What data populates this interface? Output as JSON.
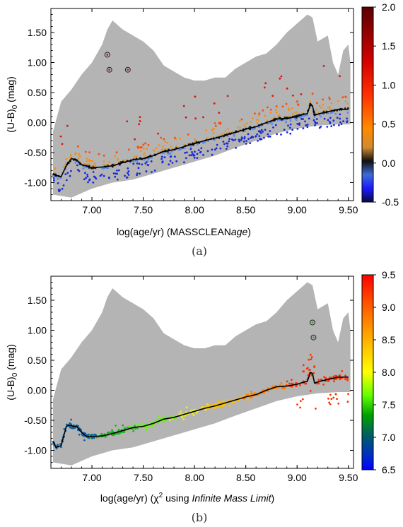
{
  "panels": [
    {
      "panel_label": "(a)",
      "xlabel_plain": "log(age/yr) (MASSCLEAN",
      "xlabel_italic": "age",
      "xlabel_tail": ")",
      "ylabel_main": "(U-B)",
      "ylabel_sub": "0",
      "ylabel_tail": " (mag)",
      "colorbar": {
        "ticks": [
          "2.0",
          "1.5",
          "1.0",
          "0.5",
          "0.0",
          "-0.5"
        ],
        "values": [
          2.0,
          1.5,
          1.0,
          0.5,
          0.0,
          -0.5
        ],
        "range": [
          -0.5,
          2.0
        ]
      }
    },
    {
      "panel_label": "(b)",
      "xlabel_plain": "log(age/yr) (χ",
      "xlabel_sup": "2",
      "xlabel_mid": " using ",
      "xlabel_italic": "Infinite Mass Limit",
      "xlabel_tail": ")",
      "ylabel_main": "(U-B)",
      "ylabel_sub": "0",
      "ylabel_tail": " (mag)",
      "colorbar": {
        "ticks": [
          "9.5",
          "9.0",
          "8.5",
          "8.0",
          "7.5",
          "7.0",
          "6.5"
        ],
        "values": [
          9.5,
          9.0,
          8.5,
          8.0,
          7.5,
          7.0,
          6.5
        ],
        "range": [
          6.5,
          9.5
        ]
      }
    }
  ],
  "chart_data": [
    {
      "type": "scatter",
      "xlim": [
        6.6,
        9.55
      ],
      "ylim": [
        -1.3,
        1.9
      ],
      "x_ticks": [
        "7.00",
        "7.50",
        "8.00",
        "8.50",
        "9.00",
        "9.50"
      ],
      "y_ticks": [
        "1.50",
        "1.00",
        "0.50",
        "0.00",
        "-0.50",
        "-1.00"
      ],
      "colormap": "blue-black-orange-red",
      "envelope_upper": [
        [
          6.62,
          -0.15
        ],
        [
          6.7,
          0.35
        ],
        [
          6.8,
          0.55
        ],
        [
          6.9,
          0.8
        ],
        [
          7.0,
          1.0
        ],
        [
          7.1,
          1.3
        ],
        [
          7.15,
          1.55
        ],
        [
          7.2,
          1.7
        ],
        [
          7.3,
          1.55
        ],
        [
          7.4,
          1.45
        ],
        [
          7.5,
          1.35
        ],
        [
          7.6,
          1.2
        ],
        [
          7.7,
          0.95
        ],
        [
          7.8,
          0.85
        ],
        [
          7.9,
          0.75
        ],
        [
          8.0,
          0.7
        ],
        [
          8.1,
          0.7
        ],
        [
          8.2,
          0.75
        ],
        [
          8.3,
          0.75
        ],
        [
          8.4,
          0.9
        ],
        [
          8.5,
          1.0
        ],
        [
          8.6,
          1.1
        ],
        [
          8.7,
          1.15
        ],
        [
          8.8,
          1.3
        ],
        [
          8.9,
          1.5
        ],
        [
          9.0,
          1.65
        ],
        [
          9.1,
          1.8
        ],
        [
          9.15,
          1.75
        ],
        [
          9.2,
          1.35
        ],
        [
          9.3,
          1.45
        ],
        [
          9.35,
          1.0
        ],
        [
          9.4,
          0.8
        ],
        [
          9.45,
          1.2
        ],
        [
          9.5,
          1.3
        ],
        [
          9.52,
          1.0
        ]
      ],
      "envelope_lower": [
        [
          6.62,
          -1.2
        ],
        [
          6.8,
          -1.25
        ],
        [
          7.0,
          -1.1
        ],
        [
          7.2,
          -1.0
        ],
        [
          7.4,
          -0.95
        ],
        [
          7.6,
          -0.85
        ],
        [
          7.8,
          -0.75
        ],
        [
          8.0,
          -0.65
        ],
        [
          8.2,
          -0.55
        ],
        [
          8.4,
          -0.42
        ],
        [
          8.6,
          -0.3
        ],
        [
          8.8,
          -0.18
        ],
        [
          9.0,
          -0.1
        ],
        [
          9.2,
          -0.05
        ],
        [
          9.4,
          -0.03
        ],
        [
          9.52,
          -0.03
        ]
      ],
      "track": [
        [
          6.62,
          -0.85
        ],
        [
          6.65,
          -0.88
        ],
        [
          6.7,
          -0.9
        ],
        [
          6.75,
          -0.72
        ],
        [
          6.8,
          -0.6
        ],
        [
          6.85,
          -0.62
        ],
        [
          6.9,
          -0.7
        ],
        [
          7.0,
          -0.75
        ],
        [
          7.1,
          -0.74
        ],
        [
          7.2,
          -0.72
        ],
        [
          7.3,
          -0.67
        ],
        [
          7.4,
          -0.62
        ],
        [
          7.5,
          -0.6
        ],
        [
          7.6,
          -0.55
        ],
        [
          7.7,
          -0.48
        ],
        [
          7.8,
          -0.45
        ],
        [
          7.9,
          -0.4
        ],
        [
          8.0,
          -0.35
        ],
        [
          8.1,
          -0.3
        ],
        [
          8.2,
          -0.26
        ],
        [
          8.3,
          -0.21
        ],
        [
          8.4,
          -0.16
        ],
        [
          8.5,
          -0.11
        ],
        [
          8.6,
          -0.07
        ],
        [
          8.7,
          0.0
        ],
        [
          8.8,
          0.06
        ],
        [
          8.9,
          0.07
        ],
        [
          9.0,
          0.1
        ],
        [
          9.05,
          0.13
        ],
        [
          9.1,
          0.15
        ],
        [
          9.13,
          0.3
        ],
        [
          9.15,
          0.28
        ],
        [
          9.17,
          0.12
        ],
        [
          9.22,
          0.15
        ],
        [
          9.3,
          0.18
        ],
        [
          9.4,
          0.22
        ],
        [
          9.5,
          0.22
        ]
      ],
      "circled_points": [
        [
          7.15,
          1.13
        ],
        [
          7.17,
          0.88
        ],
        [
          7.35,
          0.88
        ]
      ]
    },
    {
      "type": "scatter",
      "xlim": [
        6.6,
        9.55
      ],
      "ylim": [
        -1.3,
        1.9
      ],
      "x_ticks": [
        "7.00",
        "7.50",
        "8.00",
        "8.50",
        "9.00",
        "9.50"
      ],
      "y_ticks": [
        "1.50",
        "1.00",
        "0.50",
        "0.00",
        "-0.50",
        "-1.00"
      ],
      "colormap": "jet",
      "envelope_upper": [
        [
          6.62,
          -0.15
        ],
        [
          6.7,
          0.35
        ],
        [
          6.8,
          0.55
        ],
        [
          6.9,
          0.8
        ],
        [
          7.0,
          1.0
        ],
        [
          7.1,
          1.3
        ],
        [
          7.15,
          1.55
        ],
        [
          7.2,
          1.7
        ],
        [
          7.3,
          1.55
        ],
        [
          7.4,
          1.45
        ],
        [
          7.5,
          1.35
        ],
        [
          7.6,
          1.2
        ],
        [
          7.7,
          0.95
        ],
        [
          7.8,
          0.85
        ],
        [
          7.9,
          0.75
        ],
        [
          8.0,
          0.7
        ],
        [
          8.1,
          0.7
        ],
        [
          8.2,
          0.75
        ],
        [
          8.3,
          0.75
        ],
        [
          8.4,
          0.9
        ],
        [
          8.5,
          1.0
        ],
        [
          8.6,
          1.1
        ],
        [
          8.7,
          1.15
        ],
        [
          8.8,
          1.3
        ],
        [
          8.9,
          1.5
        ],
        [
          9.0,
          1.65
        ],
        [
          9.1,
          1.8
        ],
        [
          9.15,
          1.75
        ],
        [
          9.2,
          1.35
        ],
        [
          9.3,
          1.45
        ],
        [
          9.35,
          1.0
        ],
        [
          9.4,
          0.8
        ],
        [
          9.45,
          1.2
        ],
        [
          9.5,
          1.3
        ],
        [
          9.52,
          1.0
        ]
      ],
      "envelope_lower": [
        [
          6.62,
          -1.2
        ],
        [
          6.8,
          -1.25
        ],
        [
          7.0,
          -1.1
        ],
        [
          7.2,
          -1.0
        ],
        [
          7.4,
          -0.95
        ],
        [
          7.6,
          -0.85
        ],
        [
          7.8,
          -0.75
        ],
        [
          8.0,
          -0.65
        ],
        [
          8.2,
          -0.55
        ],
        [
          8.4,
          -0.42
        ],
        [
          8.6,
          -0.3
        ],
        [
          8.8,
          -0.18
        ],
        [
          9.0,
          -0.1
        ],
        [
          9.2,
          -0.05
        ],
        [
          9.4,
          -0.03
        ],
        [
          9.52,
          -0.03
        ]
      ],
      "track": [
        [
          6.62,
          -0.85
        ],
        [
          6.65,
          -0.95
        ],
        [
          6.7,
          -0.92
        ],
        [
          6.75,
          -0.6
        ],
        [
          6.78,
          -0.58
        ],
        [
          6.82,
          -0.6
        ],
        [
          6.85,
          -0.6
        ],
        [
          6.9,
          -0.7
        ],
        [
          6.95,
          -0.77
        ],
        [
          7.0,
          -0.77
        ],
        [
          7.1,
          -0.76
        ],
        [
          7.2,
          -0.72
        ],
        [
          7.3,
          -0.67
        ],
        [
          7.4,
          -0.62
        ],
        [
          7.5,
          -0.6
        ],
        [
          7.6,
          -0.55
        ],
        [
          7.7,
          -0.48
        ],
        [
          7.8,
          -0.45
        ],
        [
          7.9,
          -0.4
        ],
        [
          8.0,
          -0.35
        ],
        [
          8.1,
          -0.3
        ],
        [
          8.2,
          -0.26
        ],
        [
          8.3,
          -0.21
        ],
        [
          8.4,
          -0.16
        ],
        [
          8.5,
          -0.11
        ],
        [
          8.6,
          -0.07
        ],
        [
          8.7,
          0.0
        ],
        [
          8.8,
          0.06
        ],
        [
          8.9,
          0.07
        ],
        [
          9.0,
          0.1
        ],
        [
          9.05,
          0.13
        ],
        [
          9.1,
          0.15
        ],
        [
          9.13,
          0.3
        ],
        [
          9.15,
          0.28
        ],
        [
          9.17,
          0.12
        ],
        [
          9.22,
          0.15
        ],
        [
          9.3,
          0.18
        ],
        [
          9.4,
          0.22
        ],
        [
          9.5,
          0.22
        ]
      ],
      "circled_points": [
        [
          9.15,
          1.13
        ],
        [
          9.16,
          0.88
        ]
      ]
    }
  ]
}
